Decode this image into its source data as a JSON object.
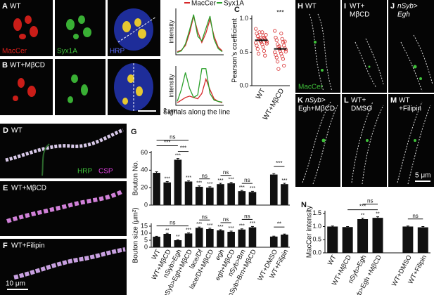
{
  "panels": {
    "A": {
      "letter": "A",
      "title": "WT",
      "channels": [
        "MacCer",
        "Syx1A",
        "HRP"
      ]
    },
    "B": {
      "letter": "B",
      "title": "WT+MβCD",
      "scale_bar": "2 μm"
    },
    "C": {
      "letter": "C"
    },
    "D": {
      "letter": "D",
      "title": "WT",
      "channels": [
        "HRP",
        "CSP"
      ]
    },
    "E": {
      "letter": "E",
      "title": "WT+MβCD"
    },
    "F": {
      "letter": "F",
      "title": "WT+Filipin",
      "scale_bar": "10 μm"
    },
    "G": {
      "letter": "G"
    },
    "H": {
      "letter": "H",
      "title": [
        "WT"
      ],
      "channel": "MacCer"
    },
    "I": {
      "letter": "I",
      "title": [
        "WT+",
        "MβCD"
      ]
    },
    "J": {
      "letter": "J",
      "title": [
        "nSyb>",
        "Egh"
      ]
    },
    "K": {
      "letter": "K",
      "title": [
        "nSyb>",
        "Egh+MβCD"
      ]
    },
    "L": {
      "letter": "L",
      "title": [
        "WT+",
        "DMSO"
      ]
    },
    "M": {
      "letter": "M",
      "title": [
        "WT",
        "+Filipin"
      ],
      "scale_bar": "5 μm"
    },
    "N": {
      "letter": "N"
    }
  },
  "chart_data": [
    {
      "type": "line",
      "y_label": "intensity",
      "ylim": [
        0,
        300
      ],
      "series": [
        {
          "name": "MacCer",
          "color": "#d62728",
          "values": [
            20,
            30,
            60,
            140,
            250,
            150,
            80,
            140,
            230,
            120,
            50,
            25
          ]
        },
        {
          "name": "Syx1A",
          "color": "#2ca02c",
          "values": [
            15,
            25,
            70,
            160,
            260,
            120,
            90,
            170,
            250,
            100,
            40,
            20
          ]
        }
      ]
    },
    {
      "type": "line",
      "y_label": "intensity",
      "x_label": "Signals along the line",
      "ylim": [
        0,
        300
      ],
      "series": [
        {
          "name": "MacCer",
          "color": "#d62728",
          "values": [
            20,
            40,
            60,
            70,
            60,
            50,
            90,
            200,
            120,
            50,
            30,
            20
          ]
        },
        {
          "name": "Syx1A",
          "color": "#2ca02c",
          "values": [
            30,
            120,
            250,
            130,
            60,
            80,
            280,
            280,
            90,
            40,
            30,
            25
          ]
        }
      ]
    },
    {
      "type": "dot",
      "y_label": "Pearson's coefficient",
      "categories": [
        "WT",
        "WT+MβCD"
      ],
      "ylim": [
        0,
        1.05
      ],
      "yticks": [
        {
          "value": 0,
          "label": "0.0"
        },
        {
          "value": 0.5,
          "label": "0.5"
        },
        {
          "value": 1,
          "label": "1.0"
        }
      ],
      "colors": [
        "#d62728",
        "#d62728"
      ],
      "means": [
        0.68,
        0.55
      ],
      "errors": [
        0.02,
        0.02
      ],
      "significance": [
        null,
        "***"
      ],
      "points": [
        [
          0.85,
          0.8,
          0.78,
          0.75,
          0.74,
          0.72,
          0.7,
          0.7,
          0.69,
          0.68,
          0.67,
          0.66,
          0.65,
          0.64,
          0.62,
          0.6,
          0.58,
          0.55,
          0.52,
          0.48,
          0.45,
          0.8,
          0.76,
          0.71,
          0.63
        ],
        [
          0.82,
          0.78,
          0.72,
          0.7,
          0.68,
          0.65,
          0.62,
          0.6,
          0.58,
          0.56,
          0.55,
          0.54,
          0.52,
          0.5,
          0.48,
          0.46,
          0.44,
          0.42,
          0.4,
          0.36,
          0.3,
          0.25,
          0.66,
          0.59,
          0.51
        ]
      ]
    },
    {
      "type": "bar",
      "y_label": "Bouton No.",
      "ylim": [
        0,
        62
      ],
      "yticks": [
        0,
        20,
        40,
        60
      ],
      "color": "#111111",
      "values": [
        37,
        26,
        52,
        27,
        21,
        20,
        24,
        25,
        16,
        15,
        35,
        24
      ],
      "errors": [
        1.2,
        1,
        1.5,
        1,
        1,
        1,
        1,
        1,
        0.8,
        0.8,
        1.2,
        1
      ],
      "significance": [
        null,
        "***",
        "***",
        "***",
        "***",
        "***",
        "***",
        "***",
        "***",
        "***",
        null,
        "***"
      ],
      "comparisons": [
        "ns",
        "***",
        "***",
        "ns",
        "ns",
        "ns",
        "***"
      ]
    },
    {
      "type": "bar",
      "y_label": "Bouton size (μm²)",
      "ylim": [
        0,
        17
      ],
      "yticks": [
        0,
        5,
        10,
        15
      ],
      "color": "#111111",
      "categories": [
        "WT",
        "WT+MβCD",
        "nSyb>Egh",
        "nSyb>Egh+MβCD",
        "lace/Df",
        "lace/Df+MβCD",
        "egh",
        "egh+MβCD",
        "nSyb>Brn",
        "nSyb>Brn+MβCD",
        "WT+DMSO",
        "WT+Filipin"
      ],
      "values": [
        7.5,
        9.5,
        5,
        9.8,
        13.8,
        13,
        12,
        11,
        12.6,
        14.2,
        7.6,
        9
      ],
      "errors": [
        0.3,
        0.4,
        0.3,
        0.4,
        0.6,
        0.5,
        0.5,
        0.5,
        0.5,
        0.6,
        0.3,
        0.4
      ],
      "significance": [
        null,
        "**",
        "**",
        "***",
        "***",
        "***",
        "***",
        "***",
        "***",
        "***",
        null,
        null
      ],
      "comparisons": [
        "ns",
        "ns",
        "ns",
        "ns",
        "**"
      ]
    },
    {
      "type": "bar",
      "y_label": "MacCer intensity",
      "ylim": [
        0,
        1.6
      ],
      "color": "#111111",
      "yticks": [
        {
          "value": 0,
          "label": "0.0"
        },
        {
          "value": 0.5,
          "label": "0.5"
        },
        {
          "value": 1,
          "label": "1.0"
        },
        {
          "value": 1.5,
          "label": "1.5"
        }
      ],
      "categories": [
        "WT",
        "WT+MβCD",
        "nSyb>Egh",
        "nSyb>Egh +MβCD",
        "WT+DMSO",
        "WT+Filipin"
      ],
      "values": [
        1.0,
        0.98,
        1.28,
        1.33,
        1.0,
        0.97
      ],
      "errors": [
        0.02,
        0.02,
        0.04,
        0.04,
        0.02,
        0.03
      ],
      "significance": [
        null,
        null,
        "**",
        "**",
        null,
        null
      ],
      "comparisons": [
        "ns",
        "***",
        "ns"
      ]
    }
  ]
}
